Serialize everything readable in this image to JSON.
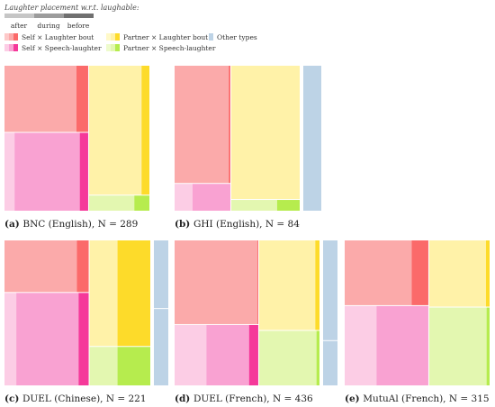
{
  "colors": {
    "self_laughter": [
      "#fdc9c9",
      "#fbaaaa",
      "#fb6a6a"
    ],
    "self_speech": [
      "#fccde5",
      "#f9a2d2",
      "#f5399a"
    ],
    "partner_laughter": [
      "#fff9c9",
      "#fff2a8",
      "#fddb2a"
    ],
    "partner_speech": [
      "#eefbcd",
      "#e3f7b0",
      "#b6ec4e"
    ],
    "other": "#bdd3e6",
    "placement_scale": [
      "#c6c6c6",
      "#9c9c9c",
      "#707070"
    ]
  },
  "legend": {
    "placement_title": "Laughter placement w.r.t. laughable:",
    "placement_labels": [
      "after",
      "during",
      "before"
    ],
    "categories": [
      {
        "key": "self_laughter",
        "label": "Self × Laughter bout"
      },
      {
        "key": "self_speech",
        "label": "Self × Speech-laughter"
      },
      {
        "key": "partner_laughter",
        "label": "Partner × Laughter bout"
      },
      {
        "key": "partner_speech",
        "label": "Partner × Speech-laughter"
      },
      {
        "key": "other",
        "label": "Other types"
      }
    ]
  },
  "chart_data": [
    {
      "type": "treemap",
      "caption_letter": "(a)",
      "caption_text": "BNC (English), N = 289",
      "columns": [
        {
          "fraction": 0.58,
          "rows": [
            {
              "category": "self_laughter",
              "fraction": 0.46,
              "placement": [
                0,
                0.86,
                0.14
              ]
            },
            {
              "category": "self_speech",
              "fraction": 0.54,
              "placement": [
                0.12,
                0.78,
                0.1
              ]
            }
          ]
        },
        {
          "fraction": 0.42,
          "rows": [
            {
              "category": "partner_laughter",
              "fraction": 0.89,
              "placement": [
                0,
                0.87,
                0.13
              ]
            },
            {
              "category": "partner_speech",
              "fraction": 0.11,
              "placement": [
                0,
                0.75,
                0.25
              ]
            }
          ]
        },
        {
          "fraction": 0,
          "rows": [
            {
              "category": "other",
              "fraction": 1,
              "placement": [
                0,
                1,
                0
              ]
            }
          ]
        }
      ]
    },
    {
      "type": "treemap",
      "caption_letter": "(b)",
      "caption_text": "GHI (English), N = 84",
      "columns": [
        {
          "fraction": 0.45,
          "rows": [
            {
              "category": "self_laughter",
              "fraction": 0.81,
              "placement": [
                0,
                0.97,
                0.03
              ]
            },
            {
              "category": "self_speech",
              "fraction": 0.19,
              "placement": [
                0.32,
                0.68,
                0
              ]
            }
          ]
        },
        {
          "fraction": 0.55,
          "rows": [
            {
              "category": "partner_laughter",
              "fraction": 0.92,
              "placement": [
                0,
                1,
                0
              ]
            },
            {
              "category": "partner_speech",
              "fraction": 0.08,
              "placement": [
                0,
                0.67,
                0.33
              ]
            }
          ]
        },
        {
          "fraction": 0.18,
          "rows": [
            {
              "category": "other",
              "fraction": 1,
              "placement": [
                0,
                1,
                0
              ]
            }
          ]
        }
      ]
    },
    {
      "type": "treemap",
      "caption_letter": "(c)",
      "caption_text": "DUEL (Chinese), N = 221",
      "columns": [
        {
          "fraction": 0.58,
          "rows": [
            {
              "category": "self_laughter",
              "fraction": 0.36,
              "placement": [
                0,
                0.86,
                0.14
              ]
            },
            {
              "category": "self_speech",
              "fraction": 0.64,
              "placement": [
                0.14,
                0.74,
                0.12
              ]
            }
          ]
        },
        {
          "fraction": 0.42,
          "rows": [
            {
              "category": "partner_laughter",
              "fraction": 0.73,
              "placement": [
                0,
                0.46,
                0.54
              ]
            },
            {
              "category": "partner_speech",
              "fraction": 0.27,
              "placement": [
                0,
                0.46,
                0.54
              ]
            }
          ]
        },
        {
          "fraction": 0.18,
          "rows": [
            {
              "category": "other",
              "fraction": 0.47,
              "placement": [
                0,
                1,
                0
              ]
            },
            {
              "category": "other",
              "fraction": 0.53,
              "placement": [
                0,
                1,
                0
              ]
            }
          ]
        }
      ]
    },
    {
      "type": "treemap",
      "caption_letter": "(d)",
      "caption_text": "DUEL (French), N = 436",
      "columns": [
        {
          "fraction": 0.58,
          "rows": [
            {
              "category": "self_laughter",
              "fraction": 0.58,
              "placement": [
                0,
                0.99,
                0.01
              ]
            },
            {
              "category": "self_speech",
              "fraction": 0.42,
              "placement": [
                0.38,
                0.51,
                0.11
              ]
            }
          ]
        },
        {
          "fraction": 0.42,
          "rows": [
            {
              "category": "partner_laughter",
              "fraction": 0.62,
              "placement": [
                0,
                0.93,
                0.07
              ]
            },
            {
              "category": "partner_speech",
              "fraction": 0.38,
              "placement": [
                0,
                0.95,
                0.05
              ]
            }
          ]
        },
        {
          "fraction": 0.18,
          "rows": [
            {
              "category": "other",
              "fraction": 0.69,
              "placement": [
                0,
                1,
                0
              ]
            },
            {
              "category": "other",
              "fraction": 0.31,
              "placement": [
                0,
                1,
                0
              ]
            }
          ]
        }
      ]
    },
    {
      "type": "treemap",
      "caption_letter": "(e)",
      "caption_text": "MutuAl (French), N = 315",
      "columns": [
        {
          "fraction": 0.58,
          "rows": [
            {
              "category": "self_laughter",
              "fraction": 0.45,
              "placement": [
                0,
                0.8,
                0.2
              ]
            },
            {
              "category": "self_speech",
              "fraction": 0.55,
              "placement": [
                0.38,
                0.62,
                0
              ]
            }
          ]
        },
        {
          "fraction": 0.42,
          "rows": [
            {
              "category": "partner_laughter",
              "fraction": 0.46,
              "placement": [
                0,
                0.94,
                0.06
              ]
            },
            {
              "category": "partner_speech",
              "fraction": 0.54,
              "placement": [
                0,
                0.95,
                0.05
              ]
            }
          ]
        },
        {
          "fraction": 0,
          "rows": [
            {
              "category": "other",
              "fraction": 1,
              "placement": [
                0,
                1,
                0
              ]
            }
          ]
        }
      ]
    }
  ]
}
